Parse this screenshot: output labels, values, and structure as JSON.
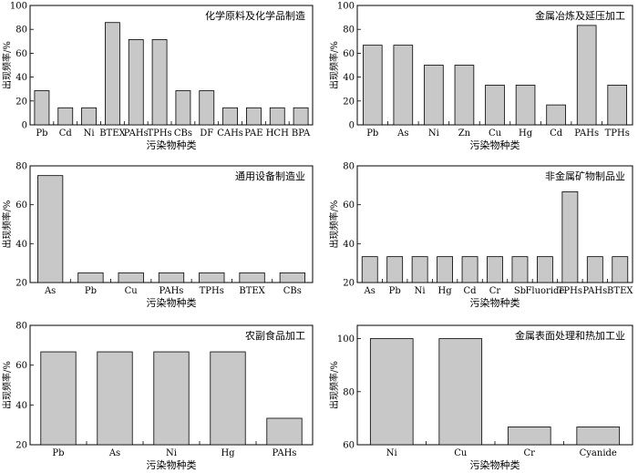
{
  "chart_data": [
    {
      "type": "bar",
      "title": "化学原料及化学品制造",
      "xlabel": "污染物种类",
      "ylabel": "出现频率/%",
      "ylim": [
        0,
        100
      ],
      "yticks": [
        0,
        20,
        40,
        60,
        80,
        100
      ],
      "categories": [
        "Pb",
        "Cd",
        "Ni",
        "BTEX",
        "PAHs",
        "TPHs",
        "CBs",
        "DF",
        "CAHs",
        "PAE",
        "HCH",
        "BPA"
      ],
      "values": [
        28.6,
        14.3,
        14.3,
        85.7,
        71.4,
        71.4,
        28.6,
        28.6,
        14.3,
        14.3,
        14.3,
        14.3
      ]
    },
    {
      "type": "bar",
      "title": "金属冶炼及延压加工",
      "xlabel": "污染物种类",
      "ylabel": "出现频率/%",
      "ylim": [
        0,
        100
      ],
      "yticks": [
        0,
        20,
        40,
        60,
        80,
        100
      ],
      "categories": [
        "Pb",
        "As",
        "Ni",
        "Zn",
        "Cu",
        "Hg",
        "Cd",
        "PAHs",
        "TPHs"
      ],
      "values": [
        66.7,
        66.7,
        50,
        50,
        33.3,
        33.3,
        16.7,
        83.3,
        33.3
      ]
    },
    {
      "type": "bar",
      "title": "通用设备制造业",
      "xlabel": "污染物种类",
      "ylabel": "出现频率/%",
      "ylim": [
        20,
        80
      ],
      "yticks": [
        20,
        40,
        60,
        80
      ],
      "categories": [
        "As",
        "Pb",
        "Cu",
        "PAHs",
        "TPHs",
        "BTEX",
        "CBs"
      ],
      "values": [
        75,
        25,
        25,
        25,
        25,
        25,
        25
      ]
    },
    {
      "type": "bar",
      "title": "非金属矿物制品业",
      "xlabel": "污染物种类",
      "ylabel": "出现频率/%",
      "ylim": [
        20,
        80
      ],
      "yticks": [
        20,
        40,
        60,
        80
      ],
      "categories": [
        "As",
        "Pb",
        "Ni",
        "Hg",
        "Cd",
        "Cr",
        "Sb",
        "Fluoride",
        "TPHs",
        "PAHs",
        "BTEX"
      ],
      "values": [
        33.3,
        33.3,
        33.3,
        33.3,
        33.3,
        33.3,
        33.3,
        33.3,
        66.7,
        33.3,
        33.3
      ]
    },
    {
      "type": "bar",
      "title": "农副食品加工",
      "xlabel": "污染物种类",
      "ylabel": "出现频率/%",
      "ylim": [
        20,
        80
      ],
      "yticks": [
        20,
        40,
        60,
        80
      ],
      "categories": [
        "Pb",
        "As",
        "Ni",
        "Hg",
        "PAHs"
      ],
      "values": [
        66.7,
        66.7,
        66.7,
        66.7,
        33.3
      ]
    },
    {
      "type": "bar",
      "title": "金属表面处理和热加工业",
      "xlabel": "污染物种类",
      "ylabel": "出现频率/%",
      "ylim": [
        60,
        105
      ],
      "yticks": [
        60,
        80,
        100
      ],
      "categories": [
        "Ni",
        "Cu",
        "Cr",
        "Cyanide"
      ],
      "values": [
        100,
        100,
        66.7,
        66.7
      ]
    }
  ]
}
